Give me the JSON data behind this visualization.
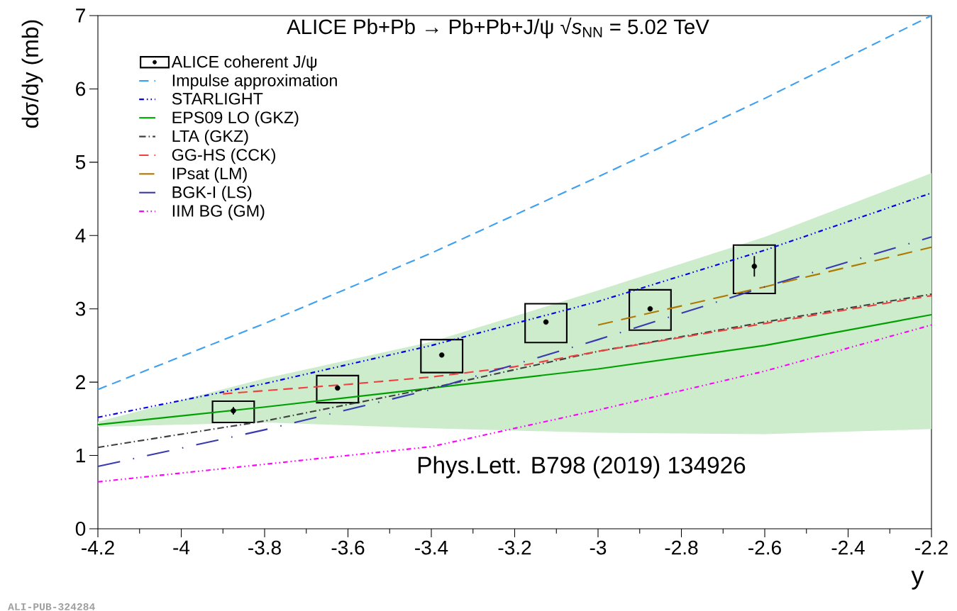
{
  "chart_data": {
    "type": "line",
    "title": "ALICE Pb+Pb → Pb+Pb+J/ψ    √*s*$_{NN}$ = 5.02 TeV",
    "xlabel": "y",
    "ylabel": "dσ/dy (mb)",
    "annotations": [
      "Phys.Lett. B798 (2019) 134926",
      "ALI-PUB-324284"
    ],
    "xlim": [
      -4.2,
      -2.2
    ],
    "ylim": [
      0,
      7
    ],
    "xticks": [
      -4.2,
      -4,
      -3.8,
      -3.6,
      -3.4,
      -3.2,
      -3,
      -2.8,
      -2.6,
      -2.4,
      -2.2
    ],
    "yticks": [
      0,
      1,
      2,
      3,
      4,
      5,
      6,
      7
    ],
    "legend": "top left",
    "grid": false,
    "series": [
      {
        "name": "ALICE coherent J/ψ",
        "type": "scatter",
        "marker": "circle",
        "color": "#000000",
        "x": [
          -3.875,
          -3.625,
          -3.375,
          -3.125,
          -2.875,
          -2.625
        ],
        "values": [
          1.61,
          1.92,
          2.37,
          2.82,
          3.0,
          3.58
        ],
        "errors": [
          0.05,
          0.02,
          0.02,
          0.02,
          0.03,
          0.14
        ]
      },
      {
        "type": "bar",
        "color": "#000000",
        "x": [
          -3.875,
          -3.625,
          -3.375,
          -3.125,
          -2.875,
          -2.625
        ],
        "base": [
          1.45,
          1.72,
          2.13,
          2.54,
          2.71,
          3.21
        ],
        "values": [
          0.29,
          0.37,
          0.45,
          0.53,
          0.55,
          0.66
        ]
      },
      {
        "name": "Impulse approximation",
        "line_style": "dashed",
        "color": "#3fa0ef",
        "x": [
          -4.2,
          -3.8,
          -3.4,
          -3.0,
          -2.6,
          -2.2
        ],
        "values": [
          1.9,
          2.8,
          3.76,
          4.8,
          5.87,
          7.0
        ]
      },
      {
        "name": "STARLIGHT",
        "line_style": "dashdotdotted",
        "color": "#0000ee",
        "x": [
          -4.2,
          -3.8,
          -3.4,
          -3.0,
          -2.6,
          -2.2
        ],
        "values": [
          1.52,
          1.98,
          2.5,
          3.1,
          3.8,
          4.58
        ]
      },
      {
        "name": "EPS09 LO (GKZ)",
        "line_style": "solid",
        "color": "#00a000",
        "x": [
          -4.2,
          -3.8,
          -3.4,
          -3.0,
          -2.6,
          -2.2
        ],
        "values": [
          1.42,
          1.66,
          1.92,
          2.18,
          2.5,
          2.92
        ],
        "lower": [
          1.39,
          1.45,
          1.37,
          1.31,
          1.29,
          1.36
        ],
        "upper": [
          1.46,
          2.05,
          2.55,
          3.25,
          3.98,
          4.85
        ]
      },
      {
        "name": "LTA (GKZ)",
        "line_style": "dashdot",
        "color": "#404040",
        "x": [
          -4.2,
          -3.8,
          -3.4,
          -3.0,
          -2.6,
          -2.2
        ],
        "values": [
          1.11,
          1.47,
          1.92,
          2.42,
          2.82,
          3.2
        ]
      },
      {
        "name": "GG-HS (CCK)",
        "line_style": "dashed",
        "color": "#f04040",
        "x": [
          -3.9,
          -3.6,
          -3.4,
          -3.2,
          -3.0,
          -2.6,
          -2.2
        ],
        "values": [
          1.84,
          1.97,
          2.07,
          2.21,
          2.42,
          2.8,
          3.18
        ]
      },
      {
        "name": "IPsat (LM)",
        "line_style": "longdashed",
        "color": "#b07800",
        "x": [
          -3.0,
          -2.6,
          -2.2
        ],
        "values": [
          2.78,
          3.3,
          3.84
        ]
      },
      {
        "name": "BGK-I (LS)",
        "line_style": "longdashdot",
        "color": "#3a3ab0",
        "x": [
          -4.2,
          -3.8,
          -3.4,
          -3.0,
          -2.6,
          -2.2
        ],
        "values": [
          0.85,
          1.35,
          1.9,
          2.58,
          3.3,
          3.98
        ]
      },
      {
        "name": "IIM BG (GM)",
        "line_style": "dashdotdotted",
        "color": "#ff00ff",
        "x": [
          -4.2,
          -3.8,
          -3.4,
          -3.0,
          -2.6,
          -2.2
        ],
        "values": [
          0.64,
          0.88,
          1.12,
          1.62,
          2.15,
          2.78
        ]
      }
    ]
  }
}
